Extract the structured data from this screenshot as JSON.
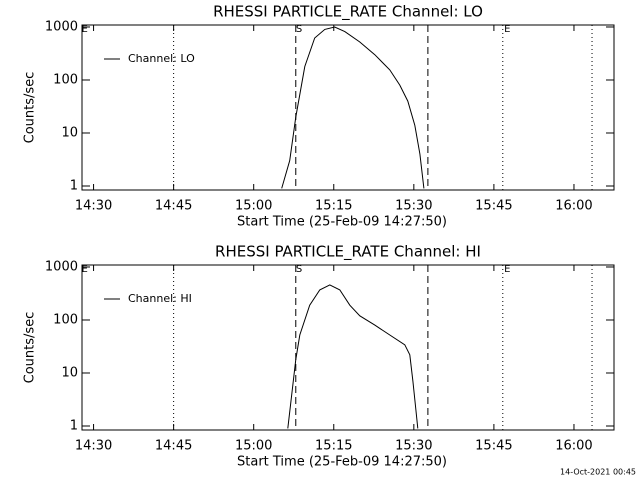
{
  "chart_data": [
    {
      "type": "line",
      "title": "RHESSI PARTICLE_RATE Channel: LO",
      "xlabel": "Start Time (25-Feb-09 14:27:50)",
      "ylabel": "Counts/sec",
      "log_y": true,
      "legend": "upper left",
      "xlim": [
        "14:27:50",
        "16:07:30"
      ],
      "xticks": [
        "14:30",
        "14:45",
        "15:00",
        "15:15",
        "15:30",
        "15:45",
        "16:00"
      ],
      "ylim": [
        0.84,
        1090
      ],
      "yticks": [
        1,
        10,
        100,
        1000
      ],
      "series": [
        {
          "name": "Channel: LO",
          "color": "#000000",
          "x": [
            "15:05:15",
            "15:06:45",
            "15:07:53",
            "15:09:34",
            "15:11:26",
            "15:13:19",
            "15:15:11",
            "15:17:04",
            "15:19:53",
            "15:22:41",
            "15:25:30",
            "15:27:22",
            "15:28:52",
            "15:30:11",
            "15:31:08",
            "15:31:53"
          ],
          "values": [
            0.9,
            3,
            20,
            180,
            620,
            900,
            1000,
            820,
            520,
            300,
            155,
            80,
            40,
            14,
            4,
            0.9
          ]
        }
      ],
      "vlines": [
        {
          "x": "14:45",
          "style": "dotted"
        },
        {
          "x": "15:07:53",
          "style": "dashed"
        },
        {
          "x": "15:32:38",
          "style": "dashed"
        },
        {
          "x": "15:46:40",
          "style": "dotted"
        },
        {
          "x": "16:03:23",
          "style": "dotted"
        }
      ],
      "annotations": [
        {
          "text": "E",
          "x": "14:28:20"
        },
        {
          "text": "S",
          "x": "15:08:30"
        },
        {
          "text": "E",
          "x": "15:47:30"
        }
      ]
    },
    {
      "type": "line",
      "title": "RHESSI PARTICLE_RATE Channel: HI",
      "xlabel": "Start Time (25-Feb-09 14:27:50)",
      "ylabel": "Counts/sec",
      "log_y": true,
      "legend": "upper left",
      "xlim": [
        "14:27:50",
        "16:07:30"
      ],
      "xticks": [
        "14:30",
        "14:45",
        "15:00",
        "15:15",
        "15:30",
        "15:45",
        "16:00"
      ],
      "ylim": [
        0.84,
        1090
      ],
      "yticks": [
        1,
        10,
        100,
        1000
      ],
      "series": [
        {
          "name": "Channel: HI",
          "color": "#000000",
          "x": [
            "15:06:23",
            "15:07:53",
            "15:08:38",
            "15:10:30",
            "15:12:23",
            "15:14:15",
            "15:16:08",
            "15:18:00",
            "15:19:53",
            "15:22:41",
            "15:25:30",
            "15:28:19",
            "15:29:15",
            "15:29:49",
            "15:30:23",
            "15:30:45"
          ],
          "values": [
            0.9,
            18,
            52,
            190,
            370,
            460,
            370,
            190,
            120,
            80,
            52,
            34,
            22,
            7,
            2,
            0.9
          ]
        }
      ],
      "vlines": [
        {
          "x": "14:45",
          "style": "dotted"
        },
        {
          "x": "15:07:53",
          "style": "dashed"
        },
        {
          "x": "15:32:38",
          "style": "dashed"
        },
        {
          "x": "15:46:40",
          "style": "dotted"
        },
        {
          "x": "16:03:23",
          "style": "dotted"
        }
      ],
      "annotations": [
        {
          "text": "E",
          "x": "14:28:20"
        },
        {
          "text": "S",
          "x": "15:08:30"
        },
        {
          "text": "E",
          "x": "15:47:30"
        }
      ]
    }
  ],
  "footer": "14-Oct-2021 00:45"
}
